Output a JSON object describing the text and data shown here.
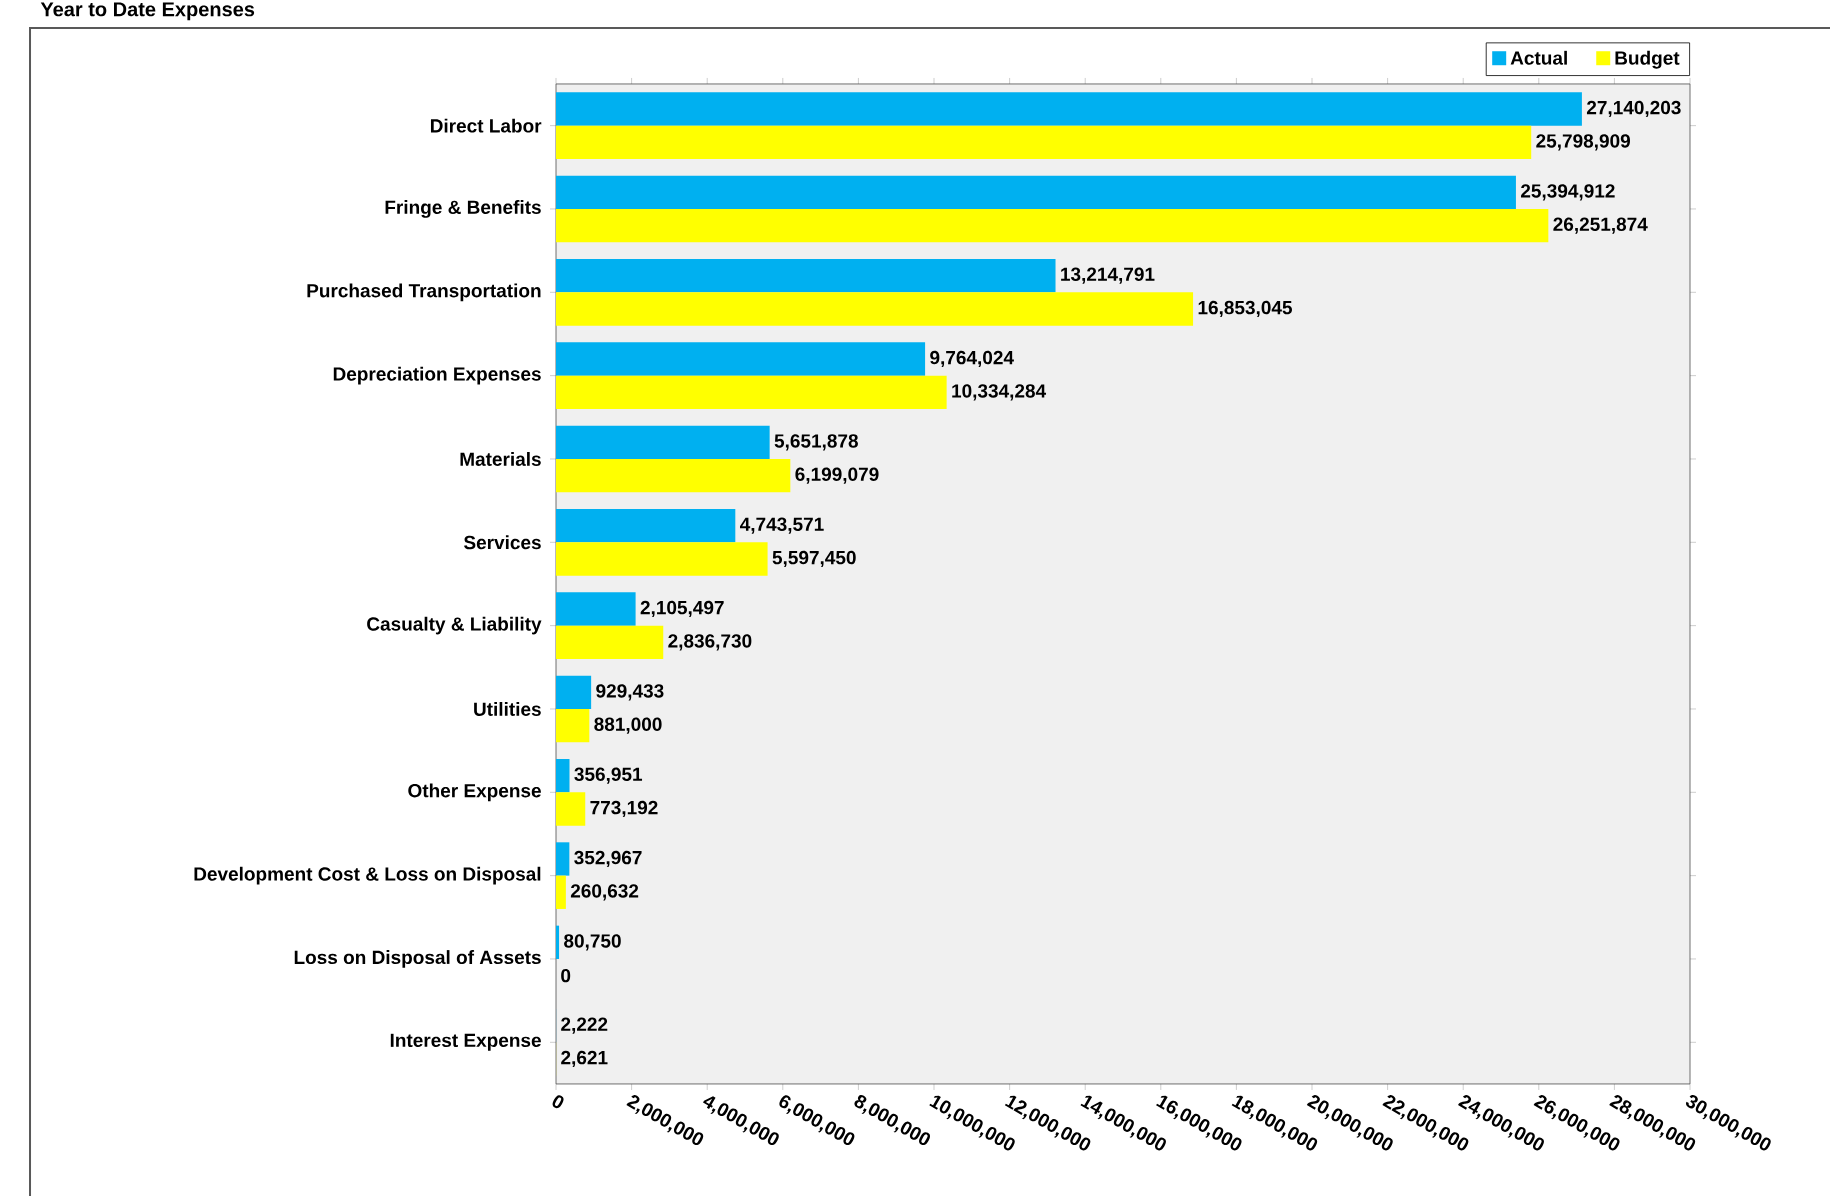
{
  "chart_data": {
    "type": "bar",
    "orientation": "horizontal",
    "title": "Year to Date Expenses",
    "categories": [
      "Direct Labor",
      "Fringe & Benefits",
      "Purchased Transportation",
      "Depreciation Expenses",
      "Materials",
      "Services",
      "Casualty & Liability",
      "Utilities",
      "Other Expense",
      "Development Cost & Loss on Disposal",
      "Loss on Disposal of Assets",
      "Interest Expense"
    ],
    "series": [
      {
        "name": "Actual",
        "color": "#00b0f0",
        "values": [
          27140203,
          25394912,
          13214791,
          9764024,
          5651878,
          4743571,
          2105497,
          929433,
          356951,
          352967,
          80750,
          2222
        ],
        "value_labels": [
          "27,140,203",
          "25,394,912",
          "13,214,791",
          "9,764,024",
          "5,651,878",
          "4,743,571",
          "2,105,497",
          "929,433",
          "356,951",
          "352,967",
          "80,750",
          "2,222"
        ]
      },
      {
        "name": "Budget",
        "color": "#ffff00",
        "values": [
          25798909,
          26251874,
          16853045,
          10334284,
          6199079,
          5597450,
          2836730,
          881000,
          773192,
          260632,
          0,
          2621
        ],
        "value_labels": [
          "25,798,909",
          "26,251,874",
          "16,853,045",
          "10,334,284",
          "6,199,079",
          "5,597,450",
          "2,836,730",
          "881,000",
          "773,192",
          "260,632",
          "0",
          "2,621"
        ]
      }
    ],
    "xlim": [
      0,
      30000000
    ],
    "xticks": [
      0,
      {
        "value": 2000000,
        "label": "2,000,000"
      },
      {
        "value": 4000000,
        "label": "4,000,000"
      },
      {
        "value": 6000000,
        "label": "6,000,000"
      },
      {
        "value": 8000000,
        "label": "8,000,000"
      },
      {
        "value": 10000000,
        "label": "10,000,000"
      },
      {
        "value": 12000000,
        "label": "12,000,000"
      },
      {
        "value": 14000000,
        "label": "14,000,000"
      },
      {
        "value": 16000000,
        "label": "16,000,000"
      },
      {
        "value": 18000000,
        "label": "18,000,000"
      },
      {
        "value": 20000000,
        "label": "20,000,000"
      },
      {
        "value": 22000000,
        "label": "22,000,000"
      },
      {
        "value": 24000000,
        "label": "24,000,000"
      },
      {
        "value": 26000000,
        "label": "26,000,000"
      },
      {
        "value": 28000000,
        "label": "28,000,000"
      },
      {
        "value": 30000000,
        "label": "30,000,000"
      }
    ],
    "legend": "top right"
  }
}
